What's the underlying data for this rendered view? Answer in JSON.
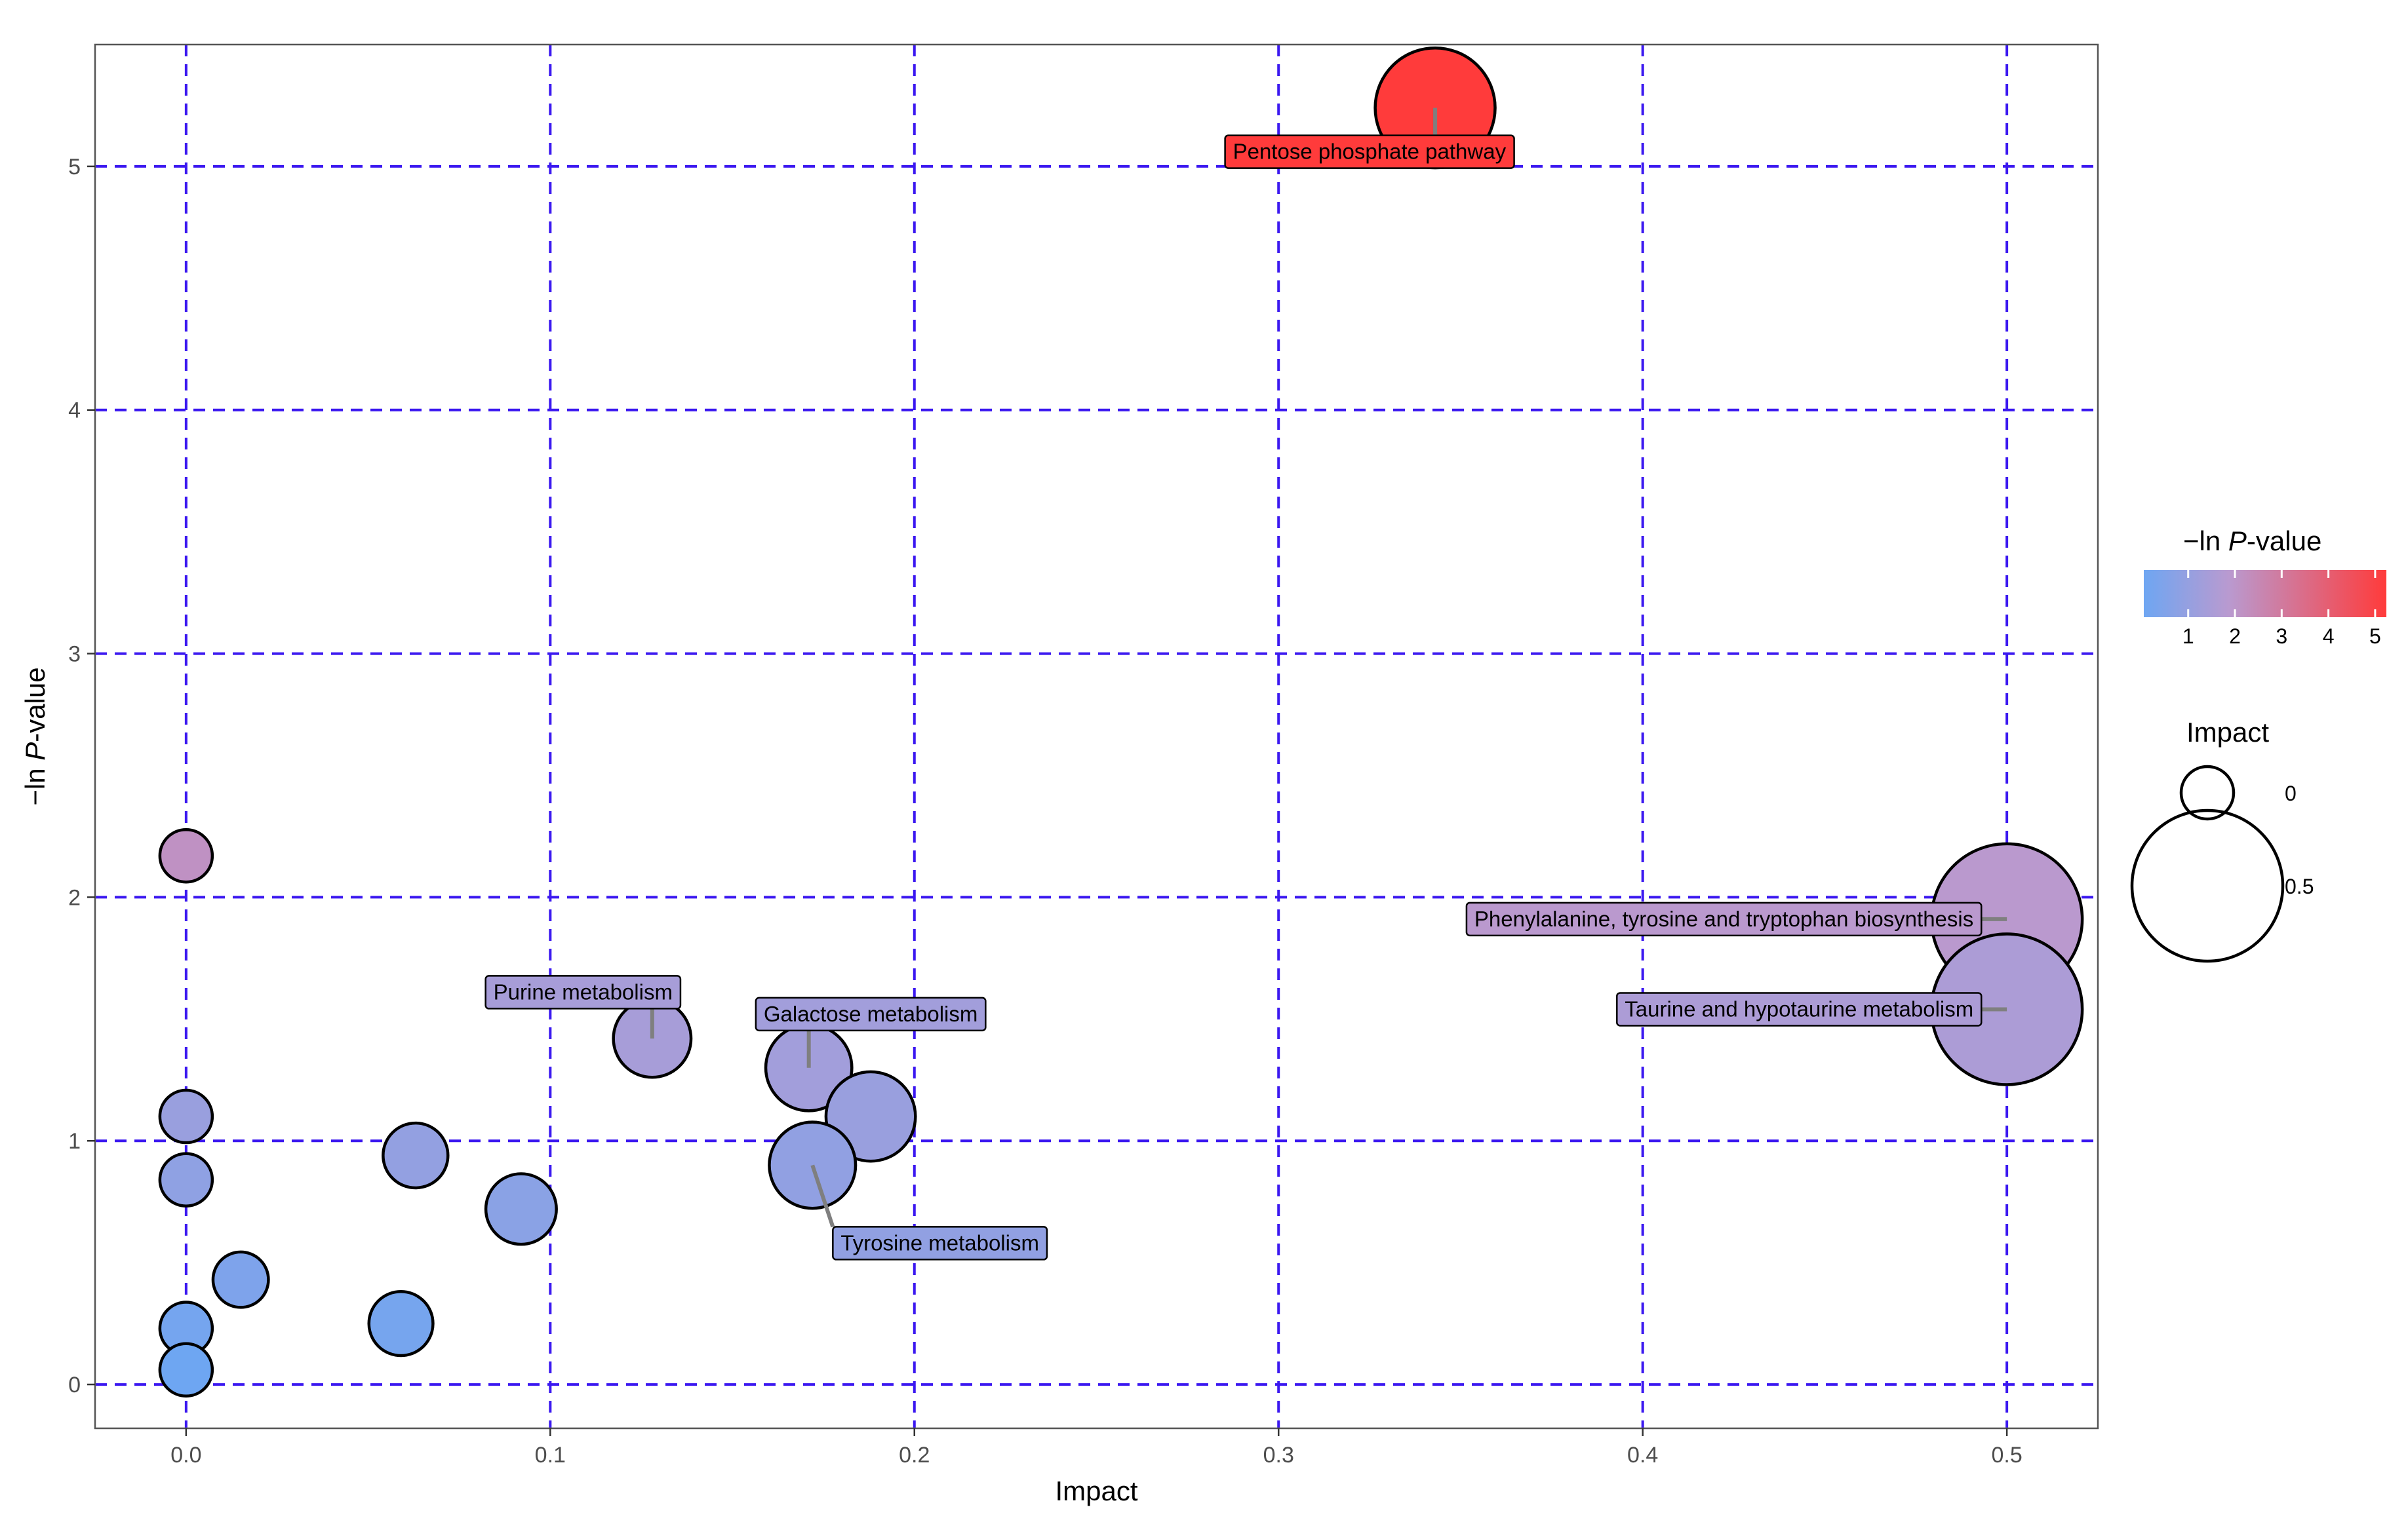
{
  "chart_data": {
    "type": "scatter",
    "xlabel": "Impact",
    "ylabel_prefix": "−ln ",
    "ylabel_italic": "P",
    "ylabel_suffix": "-value",
    "xlim": [
      -0.025,
      0.525
    ],
    "ylim": [
      -0.18,
      5.5
    ],
    "x_ticks": [
      0.0,
      0.1,
      0.2,
      0.3,
      0.4,
      0.5
    ],
    "x_tick_labels": [
      "0.0",
      "0.1",
      "0.2",
      "0.3",
      "0.4",
      "0.5"
    ],
    "y_ticks": [
      0,
      1,
      2,
      3,
      4,
      5
    ],
    "y_tick_labels": [
      "0",
      "1",
      "2",
      "3",
      "4",
      "5"
    ],
    "grid": true,
    "grid_color": "#3b18f0",
    "color_low": "#6ea6f2",
    "color_mid": "#b99ad0",
    "color_high": "#ff3b3b",
    "color_range": [
      0.05,
      5.24
    ],
    "points": [
      {
        "x": 0.343,
        "y": 5.24,
        "label": "Pentose phosphate pathway"
      },
      {
        "x": 0.0,
        "y": 2.17
      },
      {
        "x": 0.5,
        "y": 1.91,
        "label": "Phenylalanine, tyrosine and tryptophan biosynthesis"
      },
      {
        "x": 0.5,
        "y": 1.54,
        "label": "Taurine and hypotaurine metabolism"
      },
      {
        "x": 0.128,
        "y": 1.42,
        "label": "Purine metabolism"
      },
      {
        "x": 0.171,
        "y": 1.3,
        "label": "Galactose metabolism"
      },
      {
        "x": 0.188,
        "y": 1.1
      },
      {
        "x": 0.172,
        "y": 0.9,
        "label": "Tyrosine metabolism"
      },
      {
        "x": 0.0,
        "y": 1.1
      },
      {
        "x": 0.063,
        "y": 0.94
      },
      {
        "x": 0.0,
        "y": 0.84
      },
      {
        "x": 0.092,
        "y": 0.72
      },
      {
        "x": 0.015,
        "y": 0.43
      },
      {
        "x": 0.059,
        "y": 0.25
      },
      {
        "x": 0.0,
        "y": 0.23
      },
      {
        "x": 0.0,
        "y": 0.06
      }
    ],
    "legend": {
      "color_title_prefix": "−ln ",
      "color_title_italic": "P",
      "color_title_suffix": "-value",
      "color_ticks": [
        1,
        2,
        3,
        4,
        5
      ],
      "color_tick_labels": [
        "1",
        "2",
        "3",
        "4",
        "5"
      ],
      "size_title": "Impact",
      "size_values": [
        0,
        0.5
      ],
      "size_labels": [
        "0",
        "0.5"
      ],
      "placement": "right"
    }
  }
}
